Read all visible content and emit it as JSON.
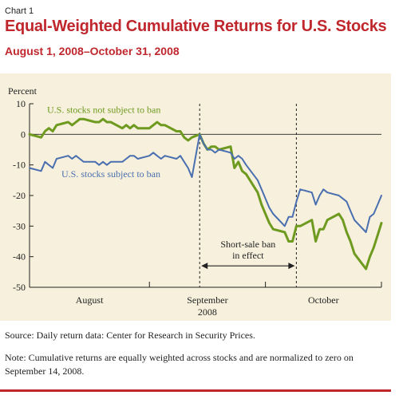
{
  "header": {
    "chart_label": "Chart 1",
    "title": "Equal-Weighted Cumulative Returns for U.S. Stocks",
    "subtitle": "August 1, 2008–October 31, 2008"
  },
  "footer": {
    "source": "Source: Daily return data: Center for Research in Security Prices.",
    "note": "Note: Cumulative returns are equally weighted across stocks and are normalized to zero on September 14, 2008."
  },
  "colors": {
    "title": "#c0272d",
    "panel_background": "#f6f0dc",
    "not_subject_series": "#6e9a1f",
    "subject_series": "#4a6fb0",
    "axis": "#222222"
  },
  "chart_data": {
    "type": "line",
    "ylabel": "Percent",
    "ylim": [
      -50,
      10
    ],
    "yticks": [
      10,
      0,
      -10,
      -20,
      -30,
      -40,
      -50
    ],
    "x_axis": {
      "months": [
        "August",
        "September",
        "October"
      ],
      "year_label": "2008",
      "start": "2008-08-01",
      "end": "2008-10-31"
    },
    "grid": false,
    "annotations": {
      "ban_label_line1": "Short-sale ban",
      "ban_label_line2": "in effect",
      "ban_start": "2008-09-14",
      "ban_end": "2008-10-09"
    },
    "series": [
      {
        "name": "U.S. stocks not subject to ban",
        "color": "#6e9a1f",
        "points": [
          [
            "2008-08-01",
            0
          ],
          [
            "2008-08-04",
            -1
          ],
          [
            "2008-08-05",
            1
          ],
          [
            "2008-08-06",
            2
          ],
          [
            "2008-08-07",
            1
          ],
          [
            "2008-08-08",
            3
          ],
          [
            "2008-08-11",
            4
          ],
          [
            "2008-08-12",
            3
          ],
          [
            "2008-08-13",
            4
          ],
          [
            "2008-08-14",
            5
          ],
          [
            "2008-08-15",
            5
          ],
          [
            "2008-08-18",
            4
          ],
          [
            "2008-08-19",
            4
          ],
          [
            "2008-08-20",
            5
          ],
          [
            "2008-08-21",
            4
          ],
          [
            "2008-08-22",
            4
          ],
          [
            "2008-08-25",
            2
          ],
          [
            "2008-08-26",
            3
          ],
          [
            "2008-08-27",
            2
          ],
          [
            "2008-08-28",
            3
          ],
          [
            "2008-08-29",
            2
          ],
          [
            "2008-09-01",
            2
          ],
          [
            "2008-09-02",
            3
          ],
          [
            "2008-09-03",
            4
          ],
          [
            "2008-09-04",
            3
          ],
          [
            "2008-09-05",
            3
          ],
          [
            "2008-09-08",
            1
          ],
          [
            "2008-09-09",
            1
          ],
          [
            "2008-09-10",
            -1
          ],
          [
            "2008-09-11",
            -2
          ],
          [
            "2008-09-12",
            -1
          ],
          [
            "2008-09-14",
            0
          ],
          [
            "2008-09-15",
            -3
          ],
          [
            "2008-09-16",
            -5
          ],
          [
            "2008-09-17",
            -4
          ],
          [
            "2008-09-18",
            -4
          ],
          [
            "2008-09-19",
            -5
          ],
          [
            "2008-09-22",
            -4
          ],
          [
            "2008-09-23",
            -11
          ],
          [
            "2008-09-24",
            -9
          ],
          [
            "2008-09-25",
            -12
          ],
          [
            "2008-09-26",
            -13
          ],
          [
            "2008-09-29",
            -19
          ],
          [
            "2008-09-30",
            -23
          ],
          [
            "2008-10-01",
            -26
          ],
          [
            "2008-10-02",
            -29
          ],
          [
            "2008-10-03",
            -31
          ],
          [
            "2008-10-06",
            -32
          ],
          [
            "2008-10-07",
            -35
          ],
          [
            "2008-10-08",
            -35
          ],
          [
            "2008-10-09",
            -30
          ],
          [
            "2008-10-10",
            -30
          ],
          [
            "2008-10-13",
            -28
          ],
          [
            "2008-10-14",
            -35
          ],
          [
            "2008-10-15",
            -31
          ],
          [
            "2008-10-16",
            -31
          ],
          [
            "2008-10-17",
            -28
          ],
          [
            "2008-10-20",
            -26
          ],
          [
            "2008-10-21",
            -28
          ],
          [
            "2008-10-22",
            -32
          ],
          [
            "2008-10-23",
            -35
          ],
          [
            "2008-10-24",
            -39
          ],
          [
            "2008-10-27",
            -44
          ],
          [
            "2008-10-28",
            -40
          ],
          [
            "2008-10-29",
            -37
          ],
          [
            "2008-10-30",
            -33
          ],
          [
            "2008-10-31",
            -29
          ]
        ]
      },
      {
        "name": "U.S. stocks subject to ban",
        "color": "#4a6fb0",
        "points": [
          [
            "2008-08-01",
            -11
          ],
          [
            "2008-08-04",
            -12
          ],
          [
            "2008-08-05",
            -9
          ],
          [
            "2008-08-06",
            -10
          ],
          [
            "2008-08-07",
            -11
          ],
          [
            "2008-08-08",
            -8
          ],
          [
            "2008-08-11",
            -7
          ],
          [
            "2008-08-12",
            -8
          ],
          [
            "2008-08-13",
            -7
          ],
          [
            "2008-08-14",
            -8
          ],
          [
            "2008-08-15",
            -9
          ],
          [
            "2008-08-18",
            -9
          ],
          [
            "2008-08-19",
            -10
          ],
          [
            "2008-08-20",
            -9
          ],
          [
            "2008-08-21",
            -10
          ],
          [
            "2008-08-22",
            -9
          ],
          [
            "2008-08-25",
            -9
          ],
          [
            "2008-08-26",
            -8
          ],
          [
            "2008-08-27",
            -7
          ],
          [
            "2008-08-28",
            -7
          ],
          [
            "2008-08-29",
            -8
          ],
          [
            "2008-09-01",
            -7
          ],
          [
            "2008-09-02",
            -6
          ],
          [
            "2008-09-03",
            -7
          ],
          [
            "2008-09-04",
            -8
          ],
          [
            "2008-09-05",
            -7
          ],
          [
            "2008-09-08",
            -8
          ],
          [
            "2008-09-09",
            -7
          ],
          [
            "2008-09-10",
            -9
          ],
          [
            "2008-09-11",
            -11
          ],
          [
            "2008-09-12",
            -14
          ],
          [
            "2008-09-14",
            0
          ],
          [
            "2008-09-15",
            -3
          ],
          [
            "2008-09-16",
            -5
          ],
          [
            "2008-09-17",
            -5
          ],
          [
            "2008-09-18",
            -6
          ],
          [
            "2008-09-19",
            -5
          ],
          [
            "2008-09-22",
            -6
          ],
          [
            "2008-09-23",
            -8
          ],
          [
            "2008-09-24",
            -7
          ],
          [
            "2008-09-25",
            -8
          ],
          [
            "2008-09-26",
            -10
          ],
          [
            "2008-09-29",
            -15
          ],
          [
            "2008-09-30",
            -18
          ],
          [
            "2008-10-01",
            -21
          ],
          [
            "2008-10-02",
            -24
          ],
          [
            "2008-10-03",
            -26
          ],
          [
            "2008-10-06",
            -30
          ],
          [
            "2008-10-07",
            -27
          ],
          [
            "2008-10-08",
            -27
          ],
          [
            "2008-10-09",
            -22
          ],
          [
            "2008-10-10",
            -18
          ],
          [
            "2008-10-13",
            -19
          ],
          [
            "2008-10-14",
            -23
          ],
          [
            "2008-10-15",
            -20
          ],
          [
            "2008-10-16",
            -18
          ],
          [
            "2008-10-17",
            -19
          ],
          [
            "2008-10-20",
            -20
          ],
          [
            "2008-10-21",
            -21
          ],
          [
            "2008-10-22",
            -22
          ],
          [
            "2008-10-23",
            -25
          ],
          [
            "2008-10-24",
            -28
          ],
          [
            "2008-10-27",
            -32
          ],
          [
            "2008-10-28",
            -27
          ],
          [
            "2008-10-29",
            -26
          ],
          [
            "2008-10-30",
            -23
          ],
          [
            "2008-10-31",
            -20
          ]
        ]
      }
    ]
  }
}
